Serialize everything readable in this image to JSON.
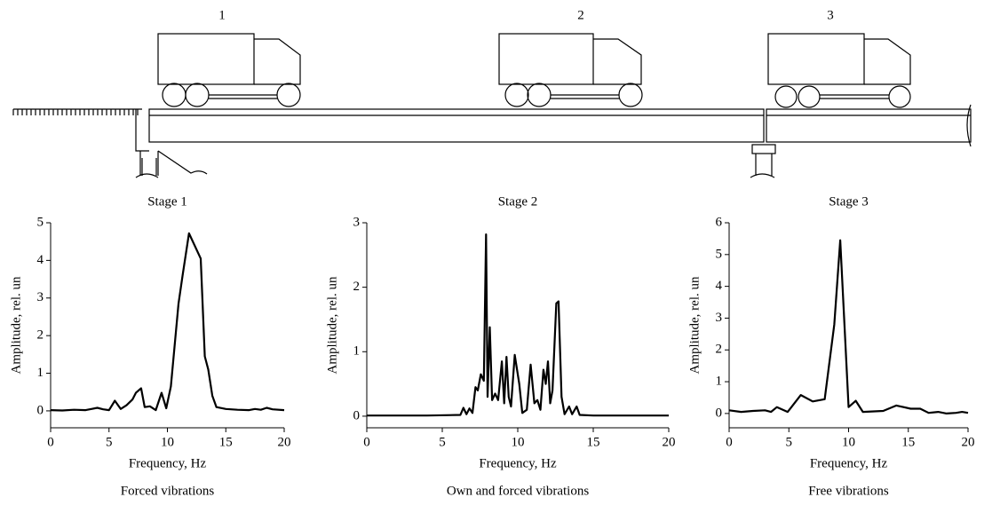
{
  "diagram": {
    "labels": [
      "1",
      "2",
      "3"
    ]
  },
  "chart_data": [
    {
      "type": "line",
      "title": "Stage 1",
      "xlabel": "Frequency, Hz",
      "ylabel": "Amplitude, rel. un",
      "caption": "Forced vibrations",
      "color": "#000000",
      "x": [
        0,
        1,
        2,
        3,
        3.5,
        4,
        4.5,
        5,
        5.5,
        6,
        6.5,
        7,
        7.3,
        7.75,
        8.05,
        8.5,
        9,
        9.5,
        9.9,
        10.3,
        10.95,
        11.3,
        11.85,
        12.85,
        13.2,
        13.5,
        13.85,
        14.2,
        15,
        16,
        17,
        17.5,
        18,
        18.5,
        19,
        20
      ],
      "values": [
        0.02,
        0.01,
        0.03,
        0.02,
        0.05,
        0.08,
        0.04,
        0.02,
        0.27,
        0.05,
        0.15,
        0.3,
        0.48,
        0.6,
        0.1,
        0.12,
        0.02,
        0.48,
        0.07,
        0.65,
        2.85,
        3.6,
        4.72,
        4.05,
        1.45,
        1.1,
        0.4,
        0.1,
        0.05,
        0.03,
        0.02,
        0.05,
        0.03,
        0.08,
        0.04,
        0.02
      ],
      "xlim": [
        0,
        20
      ],
      "ylim": [
        -0.45,
        5
      ],
      "xticks": [
        0,
        5,
        10,
        15,
        20
      ],
      "yticks": [
        0,
        1,
        2,
        3,
        4,
        5
      ]
    },
    {
      "type": "line",
      "title": "Stage 2",
      "xlabel": "Frequency, Hz",
      "ylabel": "Amplitude, rel. un",
      "caption": "Own and forced vibrations",
      "color": "#000000",
      "x": [
        0,
        4,
        6.2,
        6.4,
        6.6,
        6.8,
        7.0,
        7.2,
        7.35,
        7.55,
        7.75,
        7.9,
        8.0,
        8.15,
        8.3,
        8.5,
        8.7,
        8.95,
        9.1,
        9.25,
        9.4,
        9.55,
        9.8,
        10.1,
        10.3,
        10.6,
        10.85,
        11.1,
        11.3,
        11.5,
        11.7,
        11.85,
        12.0,
        12.15,
        12.3,
        12.55,
        12.7,
        12.9,
        13.1,
        13.4,
        13.6,
        13.9,
        14.1,
        15,
        20
      ],
      "values": [
        0.01,
        0.01,
        0.02,
        0.13,
        0.03,
        0.12,
        0.05,
        0.45,
        0.4,
        0.65,
        0.55,
        2.82,
        0.3,
        1.38,
        0.25,
        0.35,
        0.25,
        0.85,
        0.2,
        0.92,
        0.3,
        0.15,
        0.95,
        0.5,
        0.05,
        0.1,
        0.8,
        0.2,
        0.25,
        0.1,
        0.72,
        0.5,
        0.85,
        0.2,
        0.4,
        1.75,
        1.78,
        0.3,
        0.03,
        0.15,
        0.03,
        0.15,
        0.02,
        0.01,
        0.01
      ],
      "xlim": [
        0,
        20
      ],
      "ylim": [
        -0.18,
        3
      ],
      "xticks": [
        0,
        5,
        10,
        15,
        20
      ],
      "yticks": [
        0,
        1,
        2,
        3
      ]
    },
    {
      "type": "line",
      "title": "Stage 3",
      "xlabel": "Frequency, Hz",
      "ylabel": "Amplitude, rel. un",
      "caption": "Free vibrations",
      "color": "#000000",
      "x": [
        0,
        1,
        2,
        3,
        3.5,
        4,
        4.9,
        6,
        7,
        8,
        8.8,
        9.3,
        10,
        10.6,
        11.2,
        12.9,
        14,
        15.2,
        16,
        16.7,
        17.5,
        18.2,
        19,
        19.5,
        20
      ],
      "values": [
        0.1,
        0.05,
        0.08,
        0.1,
        0.05,
        0.2,
        0.05,
        0.58,
        0.38,
        0.45,
        2.8,
        5.45,
        0.2,
        0.4,
        0.05,
        0.08,
        0.25,
        0.15,
        0.15,
        0.02,
        0.05,
        0,
        0.02,
        0.05,
        0.02
      ],
      "xlim": [
        0,
        20
      ],
      "ylim": [
        -0.45,
        6
      ],
      "xticks": [
        0,
        5,
        10,
        15,
        20
      ],
      "yticks": [
        0,
        1,
        2,
        3,
        4,
        5,
        6
      ]
    }
  ]
}
